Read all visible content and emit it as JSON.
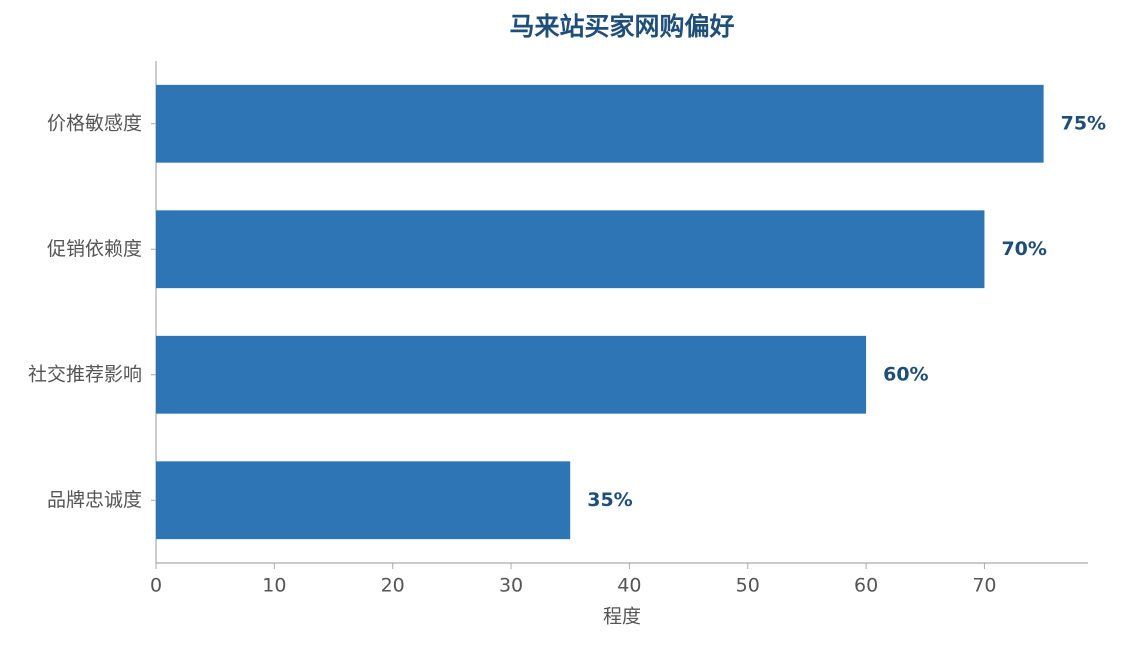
{
  "chart_data": {
    "type": "barh",
    "title": "马来站买家网购偏好",
    "categories": [
      "价格敏感度",
      "促销依赖度",
      "社交推荐影响",
      "品牌忠诚度"
    ],
    "values": [
      75,
      70,
      60,
      35
    ],
    "value_labels": [
      "75%",
      "70%",
      "60%",
      "35%"
    ],
    "color": "#2e75b6",
    "xlabel": "程度",
    "xlim": [
      0,
      78.75
    ],
    "xticks": [
      0,
      10,
      20,
      30,
      40,
      50,
      60,
      70
    ]
  }
}
